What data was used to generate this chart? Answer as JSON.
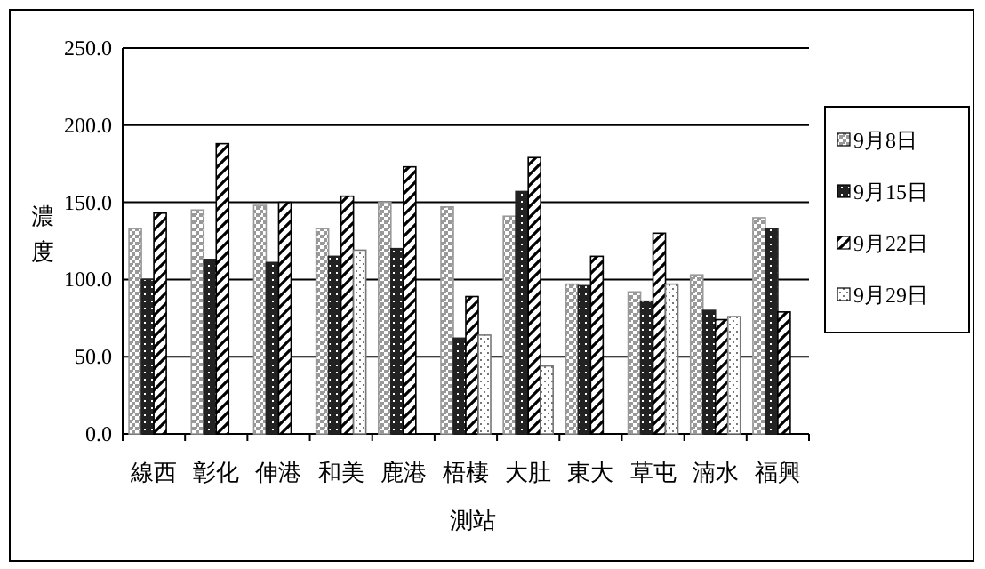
{
  "chart_data": {
    "type": "bar",
    "xlabel": "測站",
    "ylabel": "濃度",
    "categories": [
      "線西",
      "彰化",
      "伸港",
      "和美",
      "鹿港",
      "梧棲",
      "大肚",
      "東大",
      "草屯",
      "湳水",
      "福興"
    ],
    "series": [
      {
        "name": "9月8日",
        "color": "#999999",
        "values": [
          133,
          145,
          148,
          133,
          150,
          147,
          141,
          97,
          92,
          103,
          140
        ]
      },
      {
        "name": "9月15日",
        "color": "#222222",
        "values": [
          100,
          113,
          111,
          115,
          120,
          62,
          157,
          96,
          86,
          80,
          133
        ]
      },
      {
        "name": "9月22日",
        "color": "#000000",
        "values": [
          143,
          188,
          150,
          154,
          173,
          89,
          179,
          115,
          130,
          74,
          79
        ]
      },
      {
        "name": "9月29日",
        "color": "#777777",
        "values": [
          null,
          null,
          null,
          119,
          null,
          64,
          44,
          null,
          97,
          76,
          null
        ]
      }
    ],
    "ylim": [
      0,
      250
    ],
    "yticks": [
      {
        "value": 0,
        "label": "0.0"
      },
      {
        "value": 50,
        "label": "50.0"
      },
      {
        "value": 100,
        "label": "100.0"
      },
      {
        "value": 150,
        "label": "150.0"
      },
      {
        "value": 200,
        "label": "200.0"
      },
      {
        "value": 250,
        "label": "250.0"
      }
    ],
    "grid": "y",
    "legend": "right"
  }
}
